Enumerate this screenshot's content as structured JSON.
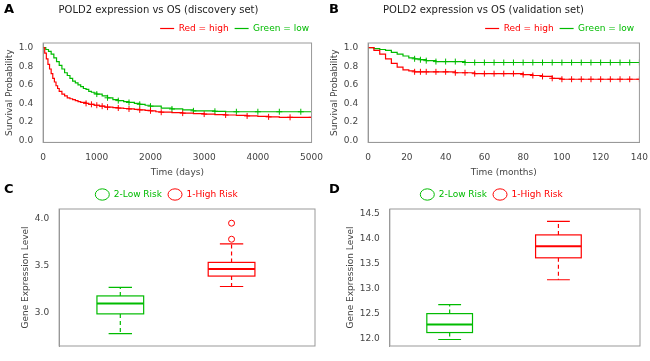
{
  "chart_data": [
    {
      "type": "line",
      "title": "POLD2 expression vs OS (discovery set)",
      "annotations": [
        "A"
      ],
      "xlabel": "Time (days)",
      "ylabel": "Survival Probability",
      "xlim": [
        0,
        5000
      ],
      "ylim": [
        -0.02,
        1.05
      ],
      "xticks": [
        0,
        1000,
        2000,
        3000,
        4000,
        5000
      ],
      "yticks": [
        {
          "value": 0.0,
          "label": "0.0"
        },
        0.2,
        0.4,
        0.6,
        0.8,
        {
          "value": 1.0,
          "label": "1.0"
        }
      ],
      "grid": false,
      "legend": "upper right",
      "series": [
        {
          "name": "Red = high",
          "color": "#FF0000",
          "line_style": "step",
          "marker": "cross",
          "x": [
            0,
            30,
            60,
            90,
            120,
            150,
            180,
            210,
            240,
            270,
            300,
            350,
            400,
            450,
            500,
            550,
            600,
            650,
            700,
            750,
            800,
            850,
            900,
            950,
            1000,
            1050,
            1100,
            1150,
            1200,
            1300,
            1400,
            1500,
            1600,
            1700,
            1800,
            1900,
            2000,
            2100,
            2200,
            2400,
            2600,
            2800,
            3000,
            3200,
            3400,
            3600,
            3800,
            4000,
            4200,
            4400,
            4600,
            4800,
            5000
          ],
          "values": [
            1.0,
            0.94,
            0.88,
            0.82,
            0.77,
            0.72,
            0.67,
            0.63,
            0.59,
            0.56,
            0.53,
            0.5,
            0.48,
            0.46,
            0.45,
            0.44,
            0.43,
            0.42,
            0.41,
            0.41,
            0.4,
            0.39,
            0.39,
            0.38,
            0.38,
            0.37,
            0.37,
            0.36,
            0.36,
            0.355,
            0.35,
            0.345,
            0.34,
            0.335,
            0.33,
            0.325,
            0.32,
            0.31,
            0.305,
            0.3,
            0.295,
            0.29,
            0.285,
            0.28,
            0.275,
            0.27,
            0.265,
            0.26,
            0.255,
            0.25,
            0.25,
            0.25,
            0.25
          ],
          "censor_x": [
            800,
            900,
            1000,
            1100,
            1200,
            1400,
            1600,
            1800,
            2000,
            2200,
            2600,
            3000,
            3400,
            3800,
            4200,
            4600,
            5000
          ],
          "censor_y": [
            0.4,
            0.39,
            0.38,
            0.37,
            0.36,
            0.35,
            0.34,
            0.33,
            0.32,
            0.305,
            0.295,
            0.285,
            0.275,
            0.265,
            0.255,
            0.25,
            0.25
          ]
        },
        {
          "name": "Green = low",
          "color": "#00BB00",
          "line_style": "step",
          "marker": "cross",
          "x": [
            0,
            50,
            100,
            150,
            200,
            250,
            300,
            350,
            400,
            450,
            500,
            550,
            600,
            650,
            700,
            750,
            800,
            850,
            900,
            950,
            1000,
            1100,
            1200,
            1300,
            1400,
            1500,
            1600,
            1700,
            1800,
            1900,
            2000,
            2200,
            2400,
            2600,
            2800,
            3000,
            3200,
            3400,
            3600,
            3800,
            4000,
            4200,
            4400,
            4600,
            4800,
            5000
          ],
          "values": [
            1.0,
            0.98,
            0.96,
            0.93,
            0.89,
            0.85,
            0.81,
            0.77,
            0.73,
            0.7,
            0.67,
            0.64,
            0.62,
            0.6,
            0.58,
            0.56,
            0.55,
            0.53,
            0.52,
            0.51,
            0.5,
            0.48,
            0.46,
            0.44,
            0.43,
            0.42,
            0.41,
            0.4,
            0.39,
            0.38,
            0.37,
            0.35,
            0.34,
            0.33,
            0.32,
            0.32,
            0.315,
            0.31,
            0.31,
            0.31,
            0.31,
            0.31,
            0.31,
            0.31,
            0.31,
            0.31
          ],
          "censor_x": [
            1000,
            1200,
            1400,
            1600,
            1800,
            2000,
            2400,
            2800,
            3200,
            3600,
            4000,
            4400,
            4800
          ],
          "censor_y": [
            0.5,
            0.46,
            0.43,
            0.41,
            0.39,
            0.37,
            0.34,
            0.32,
            0.315,
            0.31,
            0.31,
            0.31,
            0.31
          ]
        }
      ]
    },
    {
      "type": "line",
      "title": "POLD2 expression vs OS (validation set)",
      "annotations": [
        "B"
      ],
      "xlabel": "Time (months)",
      "ylabel": "Survival Probability",
      "xlim": [
        0,
        140
      ],
      "ylim": [
        -0.02,
        1.05
      ],
      "xticks": [
        0,
        20,
        40,
        60,
        80,
        100,
        120,
        140
      ],
      "yticks": [
        {
          "value": 0.0,
          "label": "0.0"
        },
        0.2,
        0.4,
        0.6,
        0.8,
        {
          "value": 1.0,
          "label": "1.0"
        }
      ],
      "grid": false,
      "legend": "upper right",
      "series": [
        {
          "name": "Red = high",
          "color": "#FF0000",
          "line_style": "step",
          "marker": "cross",
          "x": [
            0,
            3,
            6,
            9,
            12,
            15,
            18,
            21,
            24,
            27,
            30,
            35,
            40,
            45,
            50,
            55,
            60,
            65,
            70,
            75,
            80,
            85,
            90,
            95,
            100,
            105,
            110,
            115,
            120,
            125,
            130,
            135,
            140
          ],
          "values": [
            1.0,
            0.97,
            0.93,
            0.88,
            0.83,
            0.79,
            0.76,
            0.75,
            0.74,
            0.74,
            0.74,
            0.74,
            0.74,
            0.73,
            0.73,
            0.72,
            0.72,
            0.72,
            0.72,
            0.72,
            0.71,
            0.7,
            0.69,
            0.67,
            0.66,
            0.66,
            0.66,
            0.66,
            0.66,
            0.66,
            0.66,
            0.66,
            0.66
          ],
          "censor_x": [
            24,
            27,
            30,
            35,
            40,
            45,
            50,
            55,
            60,
            65,
            70,
            75,
            80,
            85,
            90,
            95,
            100,
            105,
            110,
            115,
            120,
            125,
            130,
            135,
            140
          ],
          "censor_y": [
            0.74,
            0.74,
            0.74,
            0.74,
            0.74,
            0.73,
            0.73,
            0.72,
            0.72,
            0.72,
            0.72,
            0.72,
            0.71,
            0.7,
            0.69,
            0.67,
            0.66,
            0.66,
            0.66,
            0.66,
            0.66,
            0.66,
            0.66,
            0.66,
            0.66
          ]
        },
        {
          "name": "Green = low",
          "color": "#00BB00",
          "line_style": "step",
          "marker": "cross",
          "x": [
            0,
            3,
            6,
            9,
            12,
            15,
            18,
            21,
            24,
            27,
            30,
            35,
            40,
            45,
            50,
            55,
            60,
            65,
            70,
            75,
            80,
            85,
            90,
            95,
            100,
            105,
            110,
            115,
            120,
            125,
            130,
            135,
            140
          ],
          "values": [
            1.0,
            0.99,
            0.98,
            0.97,
            0.95,
            0.93,
            0.91,
            0.89,
            0.88,
            0.87,
            0.86,
            0.85,
            0.85,
            0.85,
            0.84,
            0.84,
            0.84,
            0.84,
            0.84,
            0.84,
            0.84,
            0.84,
            0.84,
            0.84,
            0.84,
            0.84,
            0.84,
            0.84,
            0.84,
            0.84,
            0.84,
            0.84,
            0.84
          ],
          "censor_x": [
            24,
            27,
            30,
            35,
            40,
            45,
            50,
            55,
            60,
            65,
            70,
            75,
            80,
            85,
            90,
            95,
            100,
            105,
            110,
            115,
            120,
            125,
            130,
            135,
            140
          ],
          "censor_y": [
            0.88,
            0.87,
            0.86,
            0.85,
            0.85,
            0.85,
            0.84,
            0.84,
            0.84,
            0.84,
            0.84,
            0.84,
            0.84,
            0.84,
            0.84,
            0.84,
            0.84,
            0.84,
            0.84,
            0.84,
            0.84,
            0.84,
            0.84,
            0.84,
            0.84
          ]
        }
      ]
    },
    {
      "type": "box",
      "annotations": [
        "C"
      ],
      "ylabel": "Gene Expression Level",
      "ylim": [
        2.65,
        4.1
      ],
      "yticks": [
        {
          "value": 3.0,
          "label": "3.0"
        },
        3.5,
        {
          "value": 4.0,
          "label": "4.0"
        }
      ],
      "grid": false,
      "legend": "upper center",
      "tick_labels": "y",
      "series": [
        {
          "name": "2-Low Risk",
          "color": "#00BB00",
          "marker": "circle",
          "whislo": 2.78,
          "q1": 2.99,
          "med": 3.1,
          "q3": 3.18,
          "whishi": 3.27,
          "fliers": []
        },
        {
          "name": "1-High Risk",
          "color": "#FF0000",
          "marker": "circle",
          "whislo": 3.28,
          "q1": 3.39,
          "med": 3.465,
          "q3": 3.535,
          "whishi": 3.73,
          "fliers": [
            3.78,
            3.95
          ]
        }
      ]
    },
    {
      "type": "box",
      "annotations": [
        "D"
      ],
      "ylabel": "Gene Expression Level",
      "ylim": [
        11.85,
        14.6
      ],
      "yticks": [
        {
          "value": 12.0,
          "label": "12.0"
        },
        12.5,
        {
          "value": 13.0,
          "label": "13.0"
        },
        13.5,
        {
          "value": 14.0,
          "label": "14.0"
        },
        14.5
      ],
      "grid": false,
      "legend": "upper center",
      "tick_labels": "y",
      "series": [
        {
          "name": "2-Low Risk",
          "color": "#00BB00",
          "marker": "circle",
          "whislo": 11.98,
          "q1": 12.12,
          "med": 12.28,
          "q3": 12.5,
          "whishi": 12.68,
          "fliers": []
        },
        {
          "name": "1-High Risk",
          "color": "#FF0000",
          "marker": "circle",
          "whislo": 13.18,
          "q1": 13.62,
          "med": 13.85,
          "q3": 14.08,
          "whishi": 14.35,
          "fliers": []
        }
      ]
    }
  ]
}
